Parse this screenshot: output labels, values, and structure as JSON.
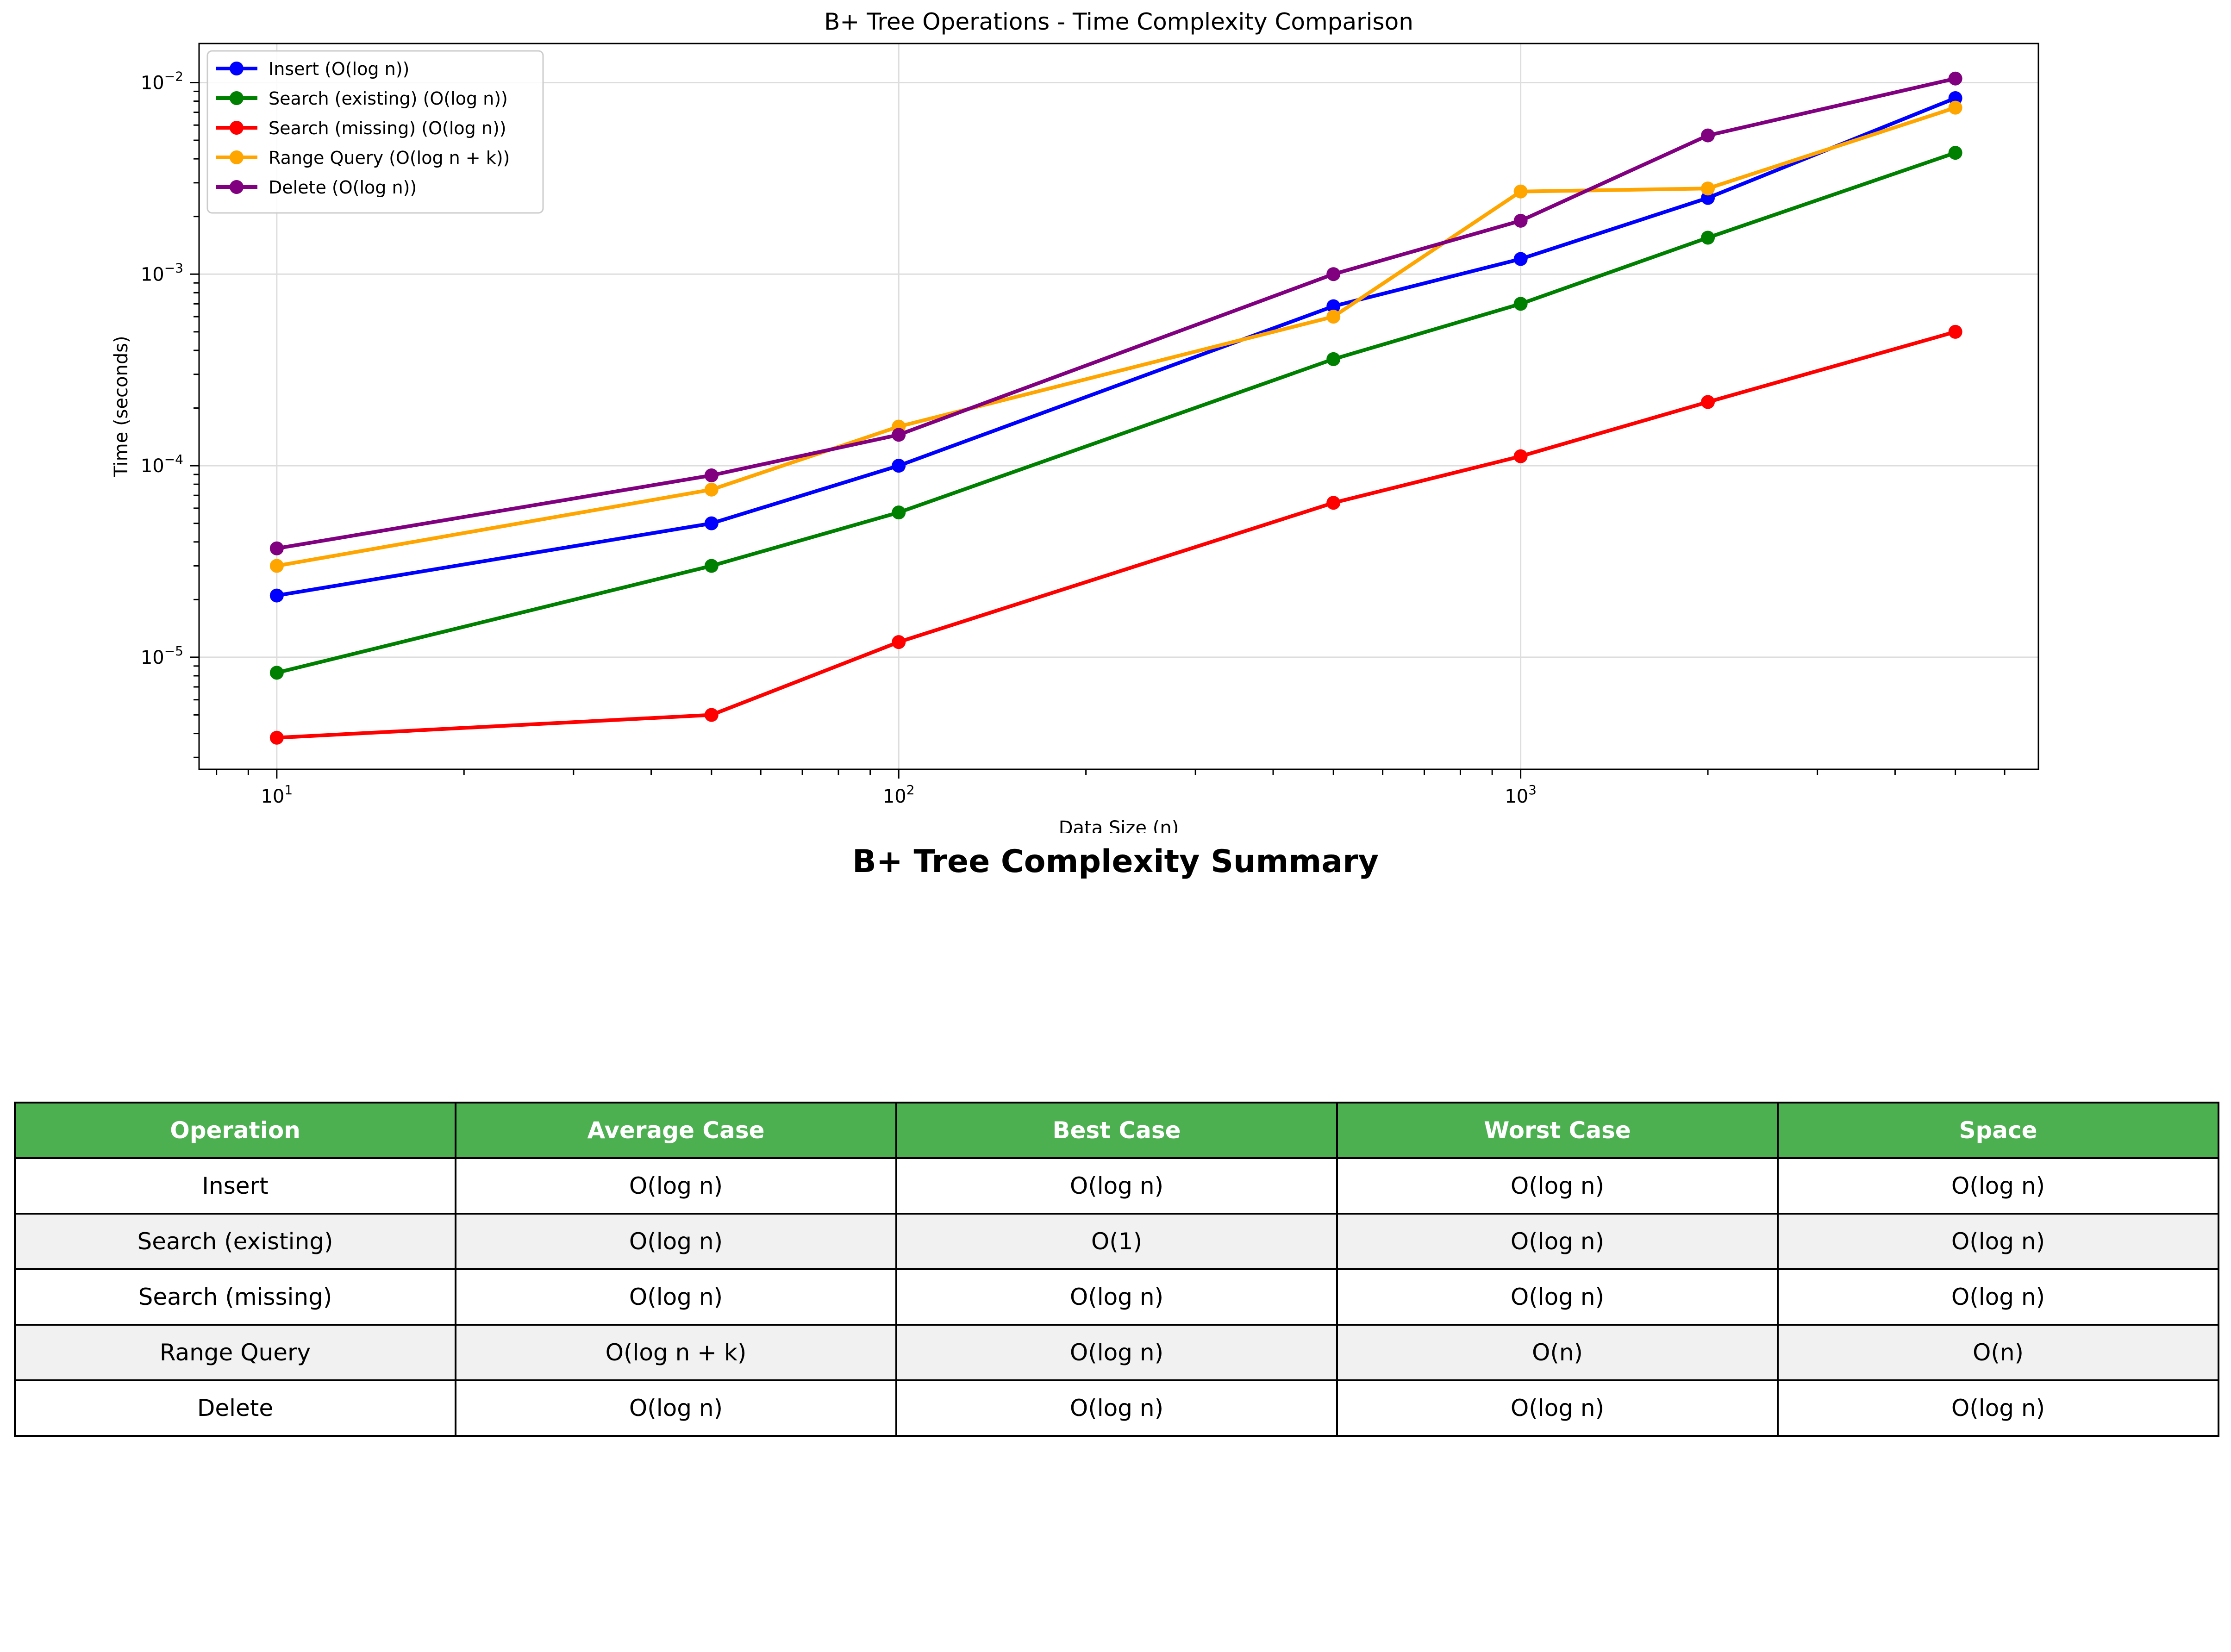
{
  "chart_data": {
    "type": "line",
    "title": "B+ Tree Operations - Time Complexity Comparison",
    "xlabel": "Data Size (n)",
    "ylabel": "Time (seconds)",
    "xscale": "log",
    "yscale": "log",
    "xlim": [
      7.5,
      6800
    ],
    "ylim": [
      2.6e-06,
      0.016
    ],
    "x_ticks": [
      {
        "value": 10,
        "base": "10",
        "exp": "1"
      },
      {
        "value": 100,
        "base": "10",
        "exp": "2"
      },
      {
        "value": 1000,
        "base": "10",
        "exp": "3"
      }
    ],
    "y_ticks": [
      {
        "value": 1e-05,
        "base": "10",
        "exp": "−5"
      },
      {
        "value": 0.0001,
        "base": "10",
        "exp": "−4"
      },
      {
        "value": 0.001,
        "base": "10",
        "exp": "−3"
      },
      {
        "value": 0.01,
        "base": "10",
        "exp": "−2"
      }
    ],
    "grid": true,
    "legend_position": "top-left",
    "x": [
      10,
      50,
      100,
      500,
      1000,
      2000,
      5000
    ],
    "series": [
      {
        "name": "Insert (O(log n))",
        "color": "#0000ff",
        "values": [
          2.1e-05,
          5e-05,
          0.0001,
          0.00068,
          0.0012,
          0.0025,
          0.0083
        ]
      },
      {
        "name": "Search (existing) (O(log n))",
        "color": "#008000",
        "values": [
          8.3e-06,
          3e-05,
          5.7e-05,
          0.00036,
          0.0007,
          0.00155,
          0.0043
        ]
      },
      {
        "name": "Search (missing) (O(log n))",
        "color": "#ff0000",
        "values": [
          3.8e-06,
          5e-06,
          1.2e-05,
          6.4e-05,
          0.000112,
          0.000215,
          0.0005
        ]
      },
      {
        "name": "Range Query (O(log n + k))",
        "color": "#ffa500",
        "values": [
          3e-05,
          7.5e-05,
          0.00016,
          0.0006,
          0.0027,
          0.0028,
          0.0074
        ]
      },
      {
        "name": "Delete (O(log n))",
        "color": "#800080",
        "values": [
          3.7e-05,
          8.9e-05,
          0.000145,
          0.001,
          0.0019,
          0.0053,
          0.0105
        ]
      }
    ]
  },
  "summary": {
    "title": "B+ Tree Complexity Summary",
    "headers": [
      "Operation",
      "Average Case",
      "Best Case",
      "Worst Case",
      "Space"
    ],
    "rows": [
      [
        "Insert",
        "O(log n)",
        "O(log n)",
        "O(log n)",
        "O(log n)"
      ],
      [
        "Search (existing)",
        "O(log n)",
        "O(1)",
        "O(log n)",
        "O(log n)"
      ],
      [
        "Search (missing)",
        "O(log n)",
        "O(log n)",
        "O(log n)",
        "O(log n)"
      ],
      [
        "Range Query",
        "O(log n + k)",
        "O(log n)",
        "O(n)",
        "O(n)"
      ],
      [
        "Delete",
        "O(log n)",
        "O(log n)",
        "O(log n)",
        "O(log n)"
      ]
    ]
  }
}
